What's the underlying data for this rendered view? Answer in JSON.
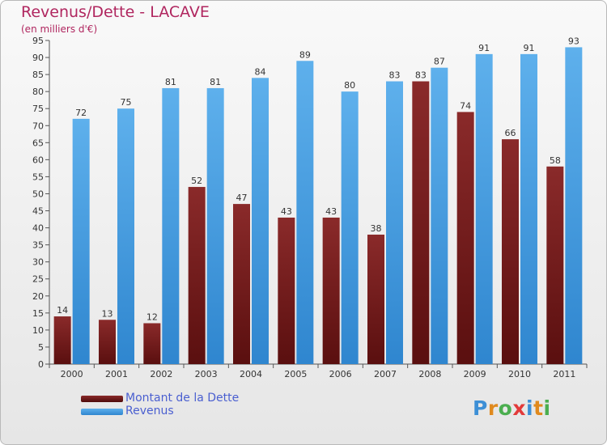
{
  "title": "Revenus/Dette - LACAVE",
  "subtitle": "(en milliers d'€)",
  "legend": {
    "debt_label": "Montant de la Dette",
    "revenue_label": "Revenus"
  },
  "logo_text": "Proxiti",
  "colors": {
    "debt": "#7a1e1e",
    "revenue": "#4a9de0",
    "title": "#b0265f",
    "legend_text": "#4a5fd0"
  },
  "chart_data": {
    "type": "bar",
    "title": "Revenus/Dette - LACAVE",
    "subtitle": "(en milliers d'€)",
    "categories": [
      "2000",
      "2001",
      "2002",
      "2003",
      "2004",
      "2005",
      "2006",
      "2007",
      "2008",
      "2009",
      "2010",
      "2011"
    ],
    "series": [
      {
        "name": "Montant de la Dette",
        "values": [
          14,
          13,
          12,
          52,
          47,
          43,
          43,
          38,
          83,
          74,
          66,
          58
        ]
      },
      {
        "name": "Revenus",
        "values": [
          72,
          75,
          81,
          81,
          84,
          89,
          80,
          83,
          87,
          91,
          91,
          93
        ]
      }
    ],
    "ylim": [
      0,
      95
    ],
    "yticks": [
      0,
      5,
      10,
      15,
      20,
      25,
      30,
      35,
      40,
      45,
      50,
      55,
      60,
      65,
      70,
      75,
      80,
      85,
      90,
      95
    ],
    "grid": false,
    "legend_position": "bottom-left"
  }
}
